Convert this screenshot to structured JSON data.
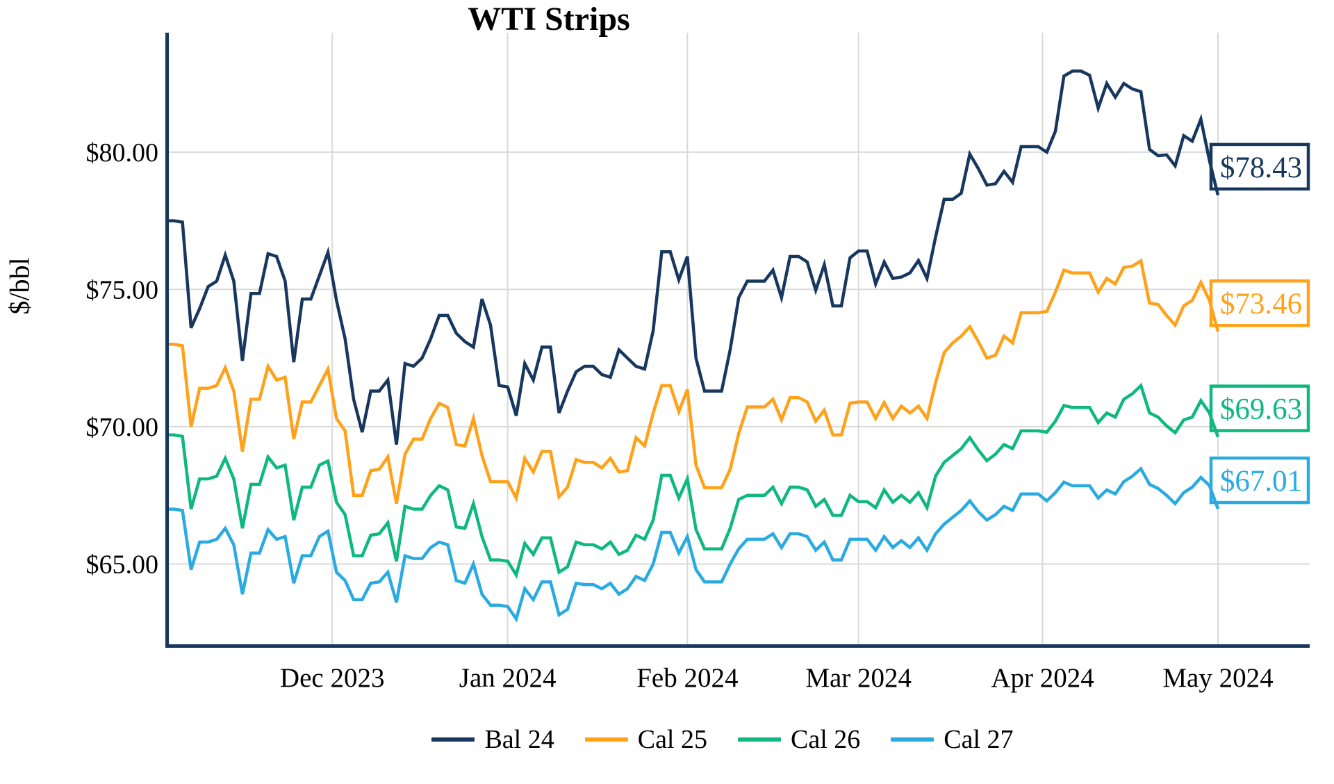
{
  "title": "WTI Strips",
  "colors": {
    "bal24": "#17375E",
    "cal25": "#FFA119",
    "cal26": "#0EB87E",
    "cal27": "#29ABE2",
    "gridline": "#D9D9D9",
    "axis_spine": "#17375E",
    "text": "#000000",
    "background": "#FFFFFF"
  },
  "chart_data": {
    "type": "line",
    "title": "WTI Strips",
    "xlabel": "",
    "ylabel": "$/bbl",
    "grid": true,
    "legend_position": "bottom",
    "ylim": [
      62.0,
      84.35
    ],
    "y_ticks": [
      {
        "value": 80,
        "label": "$80.00"
      },
      {
        "value": 75,
        "label": "$75.00"
      },
      {
        "value": 70,
        "label": "$70.00"
      },
      {
        "value": 65,
        "label": "$65.00"
      }
    ],
    "x_tick_labels": [
      "Dec 2023",
      "Jan 2024",
      "Feb 2024",
      "Mar 2024",
      "Apr 2024",
      "May 2024"
    ],
    "x_tick_indices": [
      19.5,
      40,
      61,
      81,
      102.5,
      123
    ],
    "x_range_note": "daily settlement values, early Nov 2023 through 1 May 2024",
    "series": [
      {
        "name": "Bal 24",
        "color": "#17375E",
        "end_label": "$78.43",
        "last_value": 78.43,
        "values": [
          77.5,
          77.5,
          77.45,
          73.6,
          74.3,
          75.1,
          75.3,
          76.25,
          75.3,
          72.4,
          74.85,
          74.85,
          76.3,
          76.2,
          75.3,
          72.35,
          74.65,
          74.65,
          75.5,
          76.35,
          74.6,
          73.2,
          71.0,
          69.8,
          71.3,
          71.3,
          71.7,
          69.35,
          72.3,
          72.2,
          72.5,
          73.2,
          74.05,
          74.05,
          73.4,
          73.1,
          72.9,
          74.65,
          73.7,
          71.5,
          71.45,
          70.4,
          72.3,
          71.7,
          72.9,
          72.9,
          70.5,
          71.3,
          72.0,
          72.2,
          72.2,
          71.9,
          71.8,
          72.8,
          72.5,
          72.2,
          72.1,
          73.5,
          76.37,
          76.37,
          75.35,
          76.2,
          72.5,
          71.3,
          71.3,
          71.3,
          72.8,
          74.7,
          75.3,
          75.3,
          75.3,
          75.7,
          74.7,
          76.2,
          76.2,
          76.0,
          74.97,
          75.9,
          74.4,
          74.4,
          76.15,
          76.4,
          76.4,
          75.2,
          76.0,
          75.4,
          75.45,
          75.6,
          76.05,
          75.4,
          76.9,
          78.28,
          78.28,
          78.5,
          79.93,
          79.4,
          78.8,
          78.85,
          79.3,
          78.9,
          80.2,
          80.2,
          80.2,
          80.0,
          80.76,
          82.77,
          82.95,
          82.95,
          82.8,
          81.6,
          82.5,
          82.0,
          82.5,
          82.3,
          82.2,
          80.1,
          79.87,
          79.9,
          79.5,
          80.6,
          80.4,
          81.2,
          79.7,
          78.43
        ]
      },
      {
        "name": "Cal 25",
        "color": "#FFA119",
        "end_label": "$73.46",
        "last_value": 73.46,
        "values": [
          73.0,
          73.0,
          72.95,
          70.0,
          71.4,
          71.4,
          71.5,
          72.15,
          71.3,
          69.1,
          71.0,
          71.0,
          72.2,
          71.7,
          71.8,
          69.55,
          70.9,
          70.9,
          71.5,
          72.1,
          70.3,
          69.85,
          67.5,
          67.5,
          68.4,
          68.45,
          68.9,
          67.2,
          69.0,
          69.55,
          69.55,
          70.3,
          70.85,
          70.7,
          69.35,
          69.3,
          70.3,
          68.95,
          68.0,
          68.0,
          68.0,
          67.4,
          68.85,
          68.35,
          69.1,
          69.1,
          67.45,
          67.8,
          68.8,
          68.7,
          68.7,
          68.5,
          68.85,
          68.35,
          68.4,
          69.6,
          69.3,
          70.5,
          71.5,
          71.5,
          70.55,
          71.35,
          68.6,
          67.78,
          67.78,
          67.78,
          68.45,
          69.75,
          70.72,
          70.72,
          70.72,
          71.0,
          70.25,
          71.06,
          71.06,
          70.9,
          70.2,
          70.6,
          69.7,
          69.7,
          70.86,
          70.9,
          70.9,
          70.3,
          70.88,
          70.3,
          70.75,
          70.5,
          70.75,
          70.3,
          71.6,
          72.7,
          73.05,
          73.3,
          73.64,
          73.1,
          72.5,
          72.6,
          73.3,
          73.05,
          74.15,
          74.15,
          74.15,
          74.2,
          74.9,
          75.7,
          75.6,
          75.6,
          75.6,
          74.9,
          75.4,
          75.2,
          75.8,
          75.85,
          76.04,
          74.5,
          74.45,
          74.05,
          73.7,
          74.4,
          74.6,
          75.25,
          74.6,
          73.46
        ]
      },
      {
        "name": "Cal 26",
        "color": "#0EB87E",
        "end_label": "$69.63",
        "last_value": 69.63,
        "values": [
          69.7,
          69.7,
          69.65,
          67.0,
          68.1,
          68.1,
          68.2,
          68.85,
          68.1,
          66.3,
          67.9,
          67.9,
          68.9,
          68.5,
          68.6,
          66.6,
          67.8,
          67.8,
          68.6,
          68.75,
          67.25,
          66.8,
          65.3,
          65.3,
          66.05,
          66.1,
          66.5,
          65.1,
          67.1,
          67.0,
          67.0,
          67.5,
          67.85,
          67.7,
          66.35,
          66.3,
          67.2,
          66.0,
          65.15,
          65.15,
          65.1,
          64.6,
          65.75,
          65.35,
          65.95,
          65.95,
          64.7,
          64.9,
          65.8,
          65.7,
          65.7,
          65.55,
          65.8,
          65.35,
          65.5,
          66.05,
          65.9,
          66.6,
          68.23,
          68.23,
          67.4,
          68.1,
          66.26,
          65.55,
          65.55,
          65.55,
          66.3,
          67.35,
          67.5,
          67.5,
          67.5,
          67.8,
          67.2,
          67.8,
          67.8,
          67.7,
          67.1,
          67.35,
          66.77,
          66.77,
          67.5,
          67.27,
          67.27,
          67.05,
          67.7,
          67.25,
          67.5,
          67.25,
          67.6,
          67.05,
          68.2,
          68.7,
          68.95,
          69.2,
          69.6,
          69.15,
          68.76,
          69.0,
          69.35,
          69.2,
          69.85,
          69.85,
          69.85,
          69.8,
          70.2,
          70.77,
          70.7,
          70.7,
          70.7,
          70.15,
          70.5,
          70.35,
          71.0,
          71.2,
          71.5,
          70.5,
          70.35,
          70.03,
          69.78,
          70.25,
          70.35,
          70.95,
          70.5,
          69.63
        ]
      },
      {
        "name": "Cal 27",
        "color": "#29ABE2",
        "end_label": "$67.01",
        "last_value": 67.01,
        "values": [
          67.0,
          67.0,
          66.95,
          64.8,
          65.8,
          65.8,
          65.9,
          66.3,
          65.7,
          63.9,
          65.4,
          65.4,
          66.25,
          65.9,
          66.0,
          64.3,
          65.3,
          65.3,
          66.0,
          66.2,
          64.7,
          64.4,
          63.7,
          63.7,
          64.3,
          64.35,
          64.7,
          63.6,
          65.3,
          65.2,
          65.2,
          65.6,
          65.8,
          65.7,
          64.4,
          64.3,
          65.0,
          63.9,
          63.5,
          63.5,
          63.45,
          63.0,
          64.1,
          63.7,
          64.35,
          64.35,
          63.15,
          63.35,
          64.3,
          64.25,
          64.25,
          64.1,
          64.3,
          63.9,
          64.1,
          64.55,
          64.4,
          65.0,
          66.15,
          66.15,
          65.4,
          66.0,
          64.8,
          64.35,
          64.35,
          64.35,
          65.0,
          65.55,
          65.9,
          65.9,
          65.9,
          66.1,
          65.6,
          66.1,
          66.1,
          66.0,
          65.5,
          65.8,
          65.15,
          65.15,
          65.9,
          65.9,
          65.9,
          65.5,
          66.0,
          65.6,
          65.85,
          65.6,
          65.95,
          65.5,
          66.1,
          66.45,
          66.7,
          66.95,
          67.3,
          66.9,
          66.6,
          66.8,
          67.1,
          66.95,
          67.55,
          67.55,
          67.55,
          67.3,
          67.6,
          67.98,
          67.85,
          67.85,
          67.85,
          67.4,
          67.7,
          67.55,
          68.0,
          68.2,
          68.47,
          67.9,
          67.75,
          67.5,
          67.2,
          67.6,
          67.8,
          68.15,
          67.86,
          67.01
        ]
      }
    ]
  }
}
